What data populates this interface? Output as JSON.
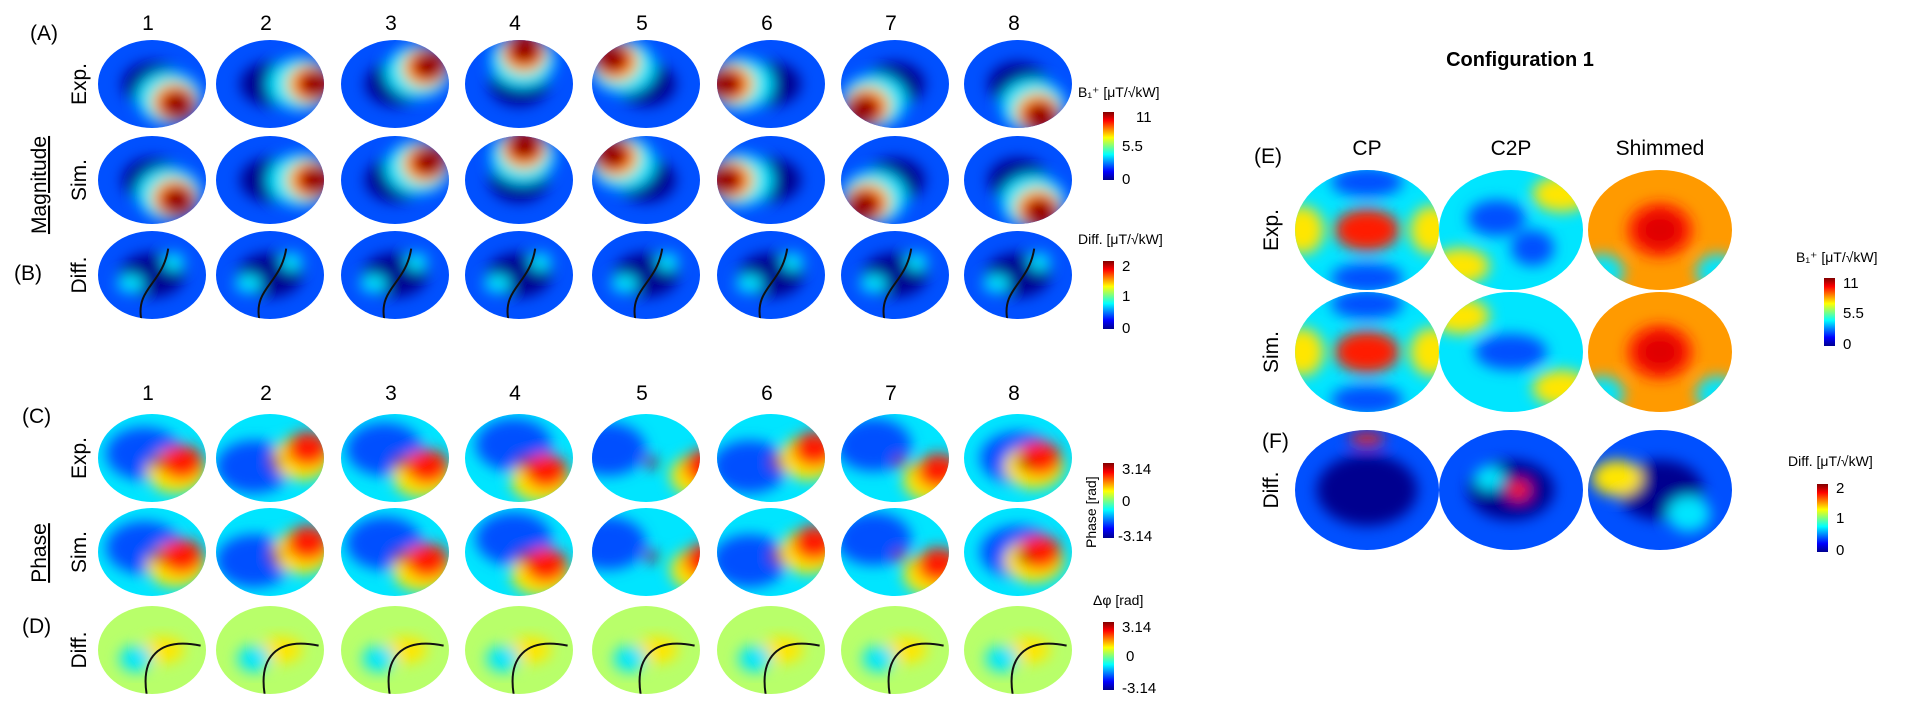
{
  "panels": {
    "A": "(A)",
    "B": "(B)",
    "C": "(C)",
    "D": "(D)",
    "E": "(E)",
    "F": "(F)"
  },
  "channel_labels": [
    "1",
    "2",
    "3",
    "4",
    "5",
    "6",
    "7",
    "8"
  ],
  "row_labels": {
    "exp": "Exp.",
    "sim": "Sim.",
    "diff": "Diff."
  },
  "group_labels": {
    "magnitude": "Magnitude",
    "phase": "Phase"
  },
  "colorbars": {
    "b1": {
      "title": "B₁⁺ [μT/√kW]",
      "ticks": [
        "11",
        "5.5",
        "0"
      ]
    },
    "diff": {
      "title": "Diff. [μT/√kW]",
      "ticks": [
        "2",
        "1",
        "0"
      ]
    },
    "phase": {
      "title": "Phase [rad]",
      "ticks": [
        "3.14",
        "0",
        "-3.14"
      ]
    },
    "dphi": {
      "title": "Δφ [rad]",
      "ticks": [
        "3.14",
        "0",
        "-3.14"
      ]
    },
    "b1_right": {
      "title": "B₁⁺ [μT/√kW]",
      "ticks": [
        "11",
        "5.5",
        "0"
      ]
    },
    "diff_right": {
      "title": "Diff. [μT/√kW]",
      "ticks": [
        "2",
        "1",
        "0"
      ]
    }
  },
  "configuration": {
    "title": "Configuration 1",
    "columns": [
      "CP",
      "C2P",
      "Shimmed"
    ]
  },
  "colors": {
    "jet_dark_blue": "#00008f",
    "jet_blue": "#0050ff",
    "jet_cyan": "#00e5ff",
    "jet_yellow": "#ffe600",
    "jet_red": "#ff1e00",
    "jet_dark_red": "#8f0000"
  }
}
